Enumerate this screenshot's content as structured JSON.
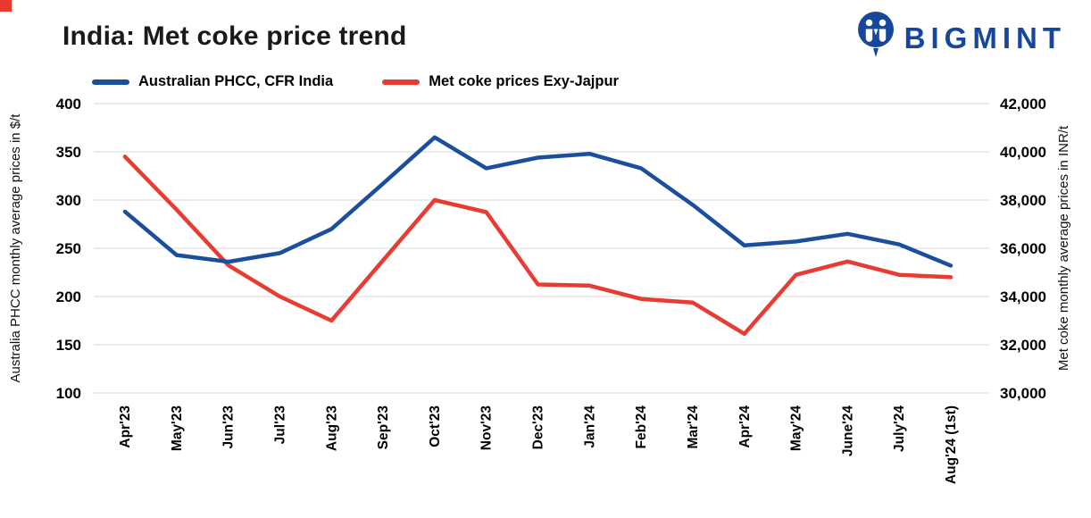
{
  "page": {
    "corner_accent_color": "#e8392f"
  },
  "header": {
    "title": "India: Met coke price trend",
    "brand": "BIGMINT",
    "brand_color": "#16479d"
  },
  "legend": {
    "items": [
      {
        "label": "Australian PHCC, CFR India",
        "color": "#1b4f9e"
      },
      {
        "label": "Met coke prices Exy-Jajpur",
        "color": "#e73c33"
      }
    ]
  },
  "chart_data": {
    "type": "line",
    "title": "India: Met coke price trend",
    "grid": true,
    "legend_position": "top",
    "categories": [
      "Apr'23",
      "May'23",
      "Jun'23",
      "Jul'23",
      "Aug'23",
      "Sep'23",
      "Oct'23",
      "Nov'23",
      "Dec'23",
      "Jan'24",
      "Feb'24",
      "Mar'24",
      "Apr'24",
      "May'24",
      "June'24",
      "July'24",
      "Aug'24 (1st)"
    ],
    "series": [
      {
        "id": "australian-phcc",
        "name": "Australian PHCC, CFR India",
        "axis": "left",
        "color": "#1b4f9e",
        "values": [
          288,
          243,
          236,
          245,
          270,
          317,
          365,
          333,
          344,
          348,
          333,
          295,
          253,
          257,
          265,
          254,
          232
        ]
      },
      {
        "id": "met-coke-jajpur",
        "name": "Met coke prices Exy-Jajpur",
        "axis": "right",
        "color": "#e73c33",
        "values": [
          39800,
          37600,
          35300,
          34000,
          33000,
          35500,
          38000,
          37500,
          34500,
          34450,
          33900,
          33750,
          32450,
          34900,
          35450,
          34900,
          34800
        ]
      }
    ],
    "left_axis": {
      "label": "Australia PHCC monthly average prices in $/t",
      "min": 100,
      "max": 400,
      "ticks": [
        "400",
        "350",
        "300",
        "250",
        "200",
        "150",
        "100"
      ]
    },
    "right_axis": {
      "label": "Met coke monthly average prices in INR/t",
      "min": 30000,
      "max": 42000,
      "ticks": [
        "42,000",
        "40,000",
        "38,000",
        "36,000",
        "34,000",
        "32,000",
        "30,000"
      ]
    }
  }
}
